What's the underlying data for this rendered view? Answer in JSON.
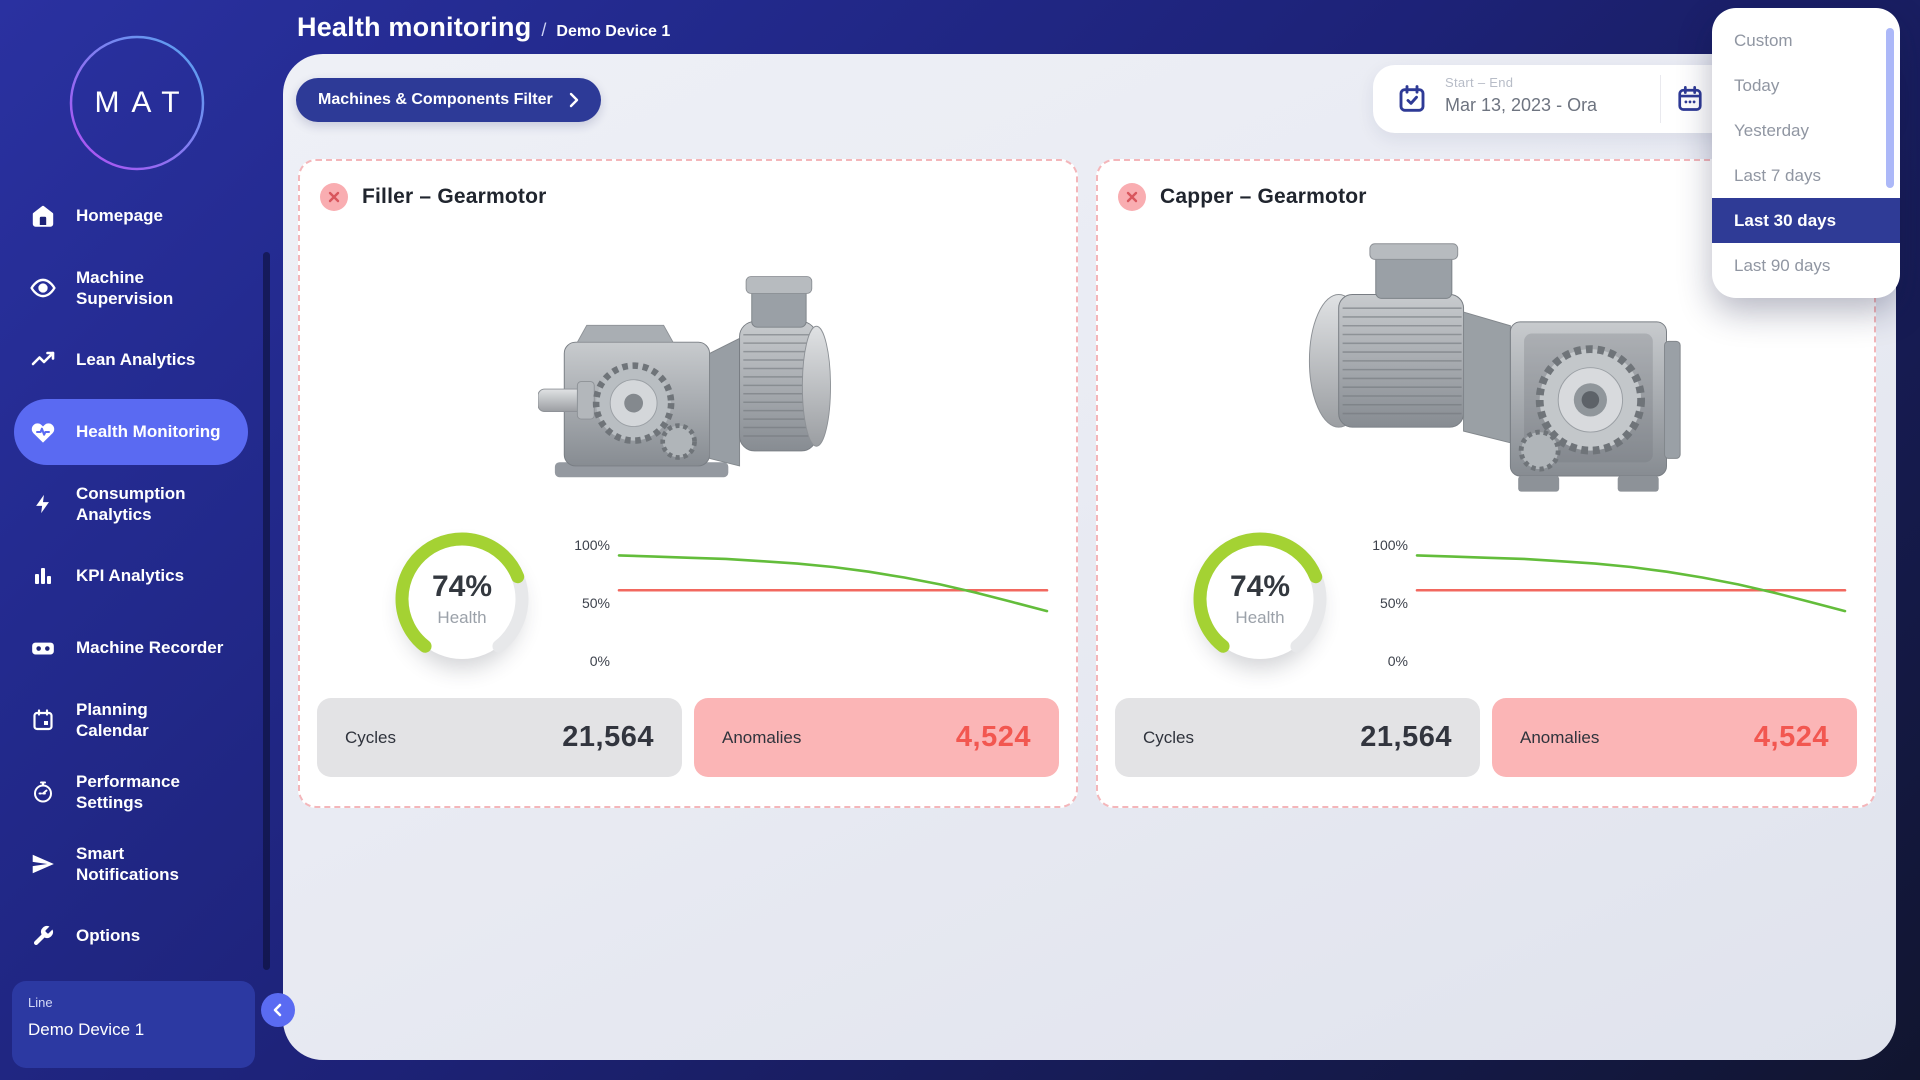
{
  "app": {
    "logo_text": "MAT",
    "colors": {
      "sidebar_active": "#5a6af2",
      "accent_indigo": "#2e3a96",
      "gauge_green": "#a4d233",
      "chart_green": "#63bd3b",
      "chart_red": "#f2685f",
      "anomaly_pink": "#fbb5b6",
      "anomaly_red": "#f25750",
      "card_border_pink": "#f4b6ba"
    }
  },
  "sidebar": {
    "items": [
      {
        "label": "Homepage",
        "icon": "home"
      },
      {
        "label": "Machine Supervision",
        "icon": "eye"
      },
      {
        "label": "Lean Analytics",
        "icon": "trend-line"
      },
      {
        "label": "Health Monitoring",
        "icon": "heart-pulse",
        "active": true
      },
      {
        "label": "Consumption Analytics",
        "icon": "lightning-bolt"
      },
      {
        "label": "KPI Analytics",
        "icon": "bar-chart"
      },
      {
        "label": "Machine Recorder",
        "icon": "recorder"
      },
      {
        "label": "Planning Calendar",
        "icon": "calendar"
      },
      {
        "label": "Performance Settings",
        "icon": "stopwatch"
      },
      {
        "label": "Smart Notifications",
        "icon": "paper-plane"
      },
      {
        "label": "Options",
        "icon": "wrench"
      }
    ],
    "device_panel": {
      "label": "Line",
      "value": "Demo Device 1"
    }
  },
  "header": {
    "title": "Health monitoring",
    "separator": "/",
    "device": "Demo Device 1"
  },
  "toolbar": {
    "filter_button_label": "Machines & Components Filter",
    "date_picker": {
      "label": "Start – End",
      "value": "Mar 13, 2023 - Ora"
    }
  },
  "date_menu": {
    "items": [
      "Custom",
      "Today",
      "Yesterday",
      "Last 7 days",
      "Last 30 days",
      "Last 90 days"
    ],
    "selected": "Last 30 days"
  },
  "cards": [
    {
      "title": "Filler – Gearmotor",
      "health": {
        "value": "74%",
        "label": "Health"
      },
      "stats": {
        "cycles": {
          "label": "Cycles",
          "value": "21,564"
        },
        "anomalies": {
          "label": "Anomalies",
          "value": "4,524"
        }
      }
    },
    {
      "title": "Capper – Gearmotor",
      "health": {
        "value": "74%",
        "label": "Health"
      },
      "stats": {
        "cycles": {
          "label": "Cycles",
          "value": "21,564"
        },
        "anomalies": {
          "label": "Anomalies",
          "value": "4,524"
        }
      }
    }
  ],
  "chart_data": {
    "gauges": [
      {
        "type": "gauge",
        "card": "Filler – Gearmotor",
        "label": "Health",
        "value_percent": 74,
        "color": "#a4d233",
        "track_color": "#e7e8ea"
      },
      {
        "type": "gauge",
        "card": "Capper – Gearmotor",
        "label": "Health",
        "value_percent": 74,
        "color": "#a4d233",
        "track_color": "#e7e8ea"
      }
    ],
    "health_trends": [
      {
        "type": "line",
        "card": "Filler – Gearmotor",
        "x_axis": "time over selected range (Last 30 days), no tick labels shown",
        "ylim": [
          0,
          100
        ],
        "yticks_top_down": [
          "100%",
          "50%",
          "0%"
        ],
        "grid": false,
        "legend": false,
        "series": [
          {
            "name": "Health",
            "color": "#63bd3b",
            "values": [
              91,
              90,
              89,
              88,
              86,
              84,
              81,
              77,
              72,
              66,
              59,
              51,
              43
            ]
          },
          {
            "name": "Threshold",
            "color": "#f2685f",
            "constant_value": 61
          }
        ]
      },
      {
        "type": "line",
        "card": "Capper – Gearmotor",
        "x_axis": "time over selected range (Last 30 days), no tick labels shown",
        "ylim": [
          0,
          100
        ],
        "yticks_top_down": [
          "100%",
          "50%",
          "0%"
        ],
        "grid": false,
        "legend": false,
        "series": [
          {
            "name": "Health",
            "color": "#63bd3b",
            "values": [
              91,
              90,
              89,
              88,
              86,
              84,
              81,
              77,
              72,
              66,
              59,
              51,
              43
            ]
          },
          {
            "name": "Threshold",
            "color": "#f2685f",
            "constant_value": 61
          }
        ]
      }
    ]
  }
}
